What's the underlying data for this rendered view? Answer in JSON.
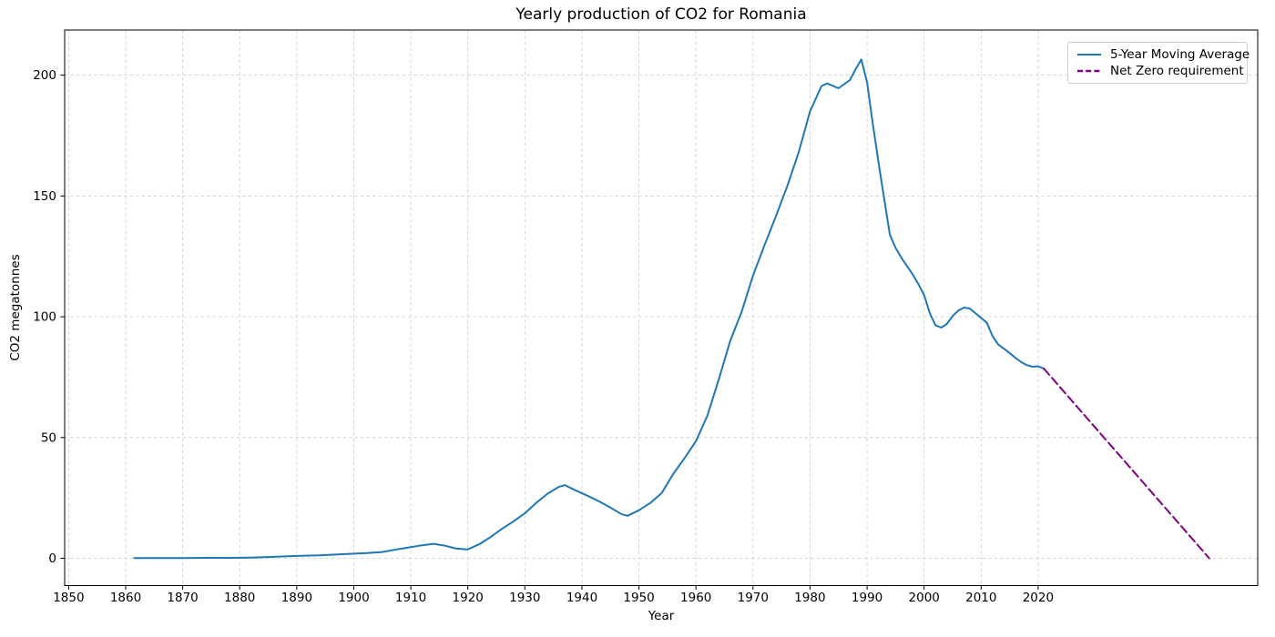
{
  "chart_data": {
    "type": "line",
    "title": "Yearly production of CO2 for Romania",
    "xlabel": "Year",
    "ylabel": "CO2 megatonnes",
    "xlim": [
      1849.3,
      2058.5
    ],
    "ylim": [
      -11.3,
      218.7
    ],
    "xticks": [
      1850,
      1860,
      1870,
      1880,
      1890,
      1900,
      1910,
      1920,
      1930,
      1940,
      1950,
      1960,
      1970,
      1980,
      1990,
      2000,
      2010,
      2020
    ],
    "yticks": [
      0,
      50,
      100,
      150,
      200
    ],
    "grid": true,
    "grid_style": "dashed",
    "legend_position": "upper right",
    "series": [
      {
        "name": "5-Year Moving Average",
        "color": "#1f77b4",
        "style": "solid",
        "points": [
          [
            1861.5,
            0.1
          ],
          [
            1866,
            0.1
          ],
          [
            1870,
            0.1
          ],
          [
            1874,
            0.2
          ],
          [
            1878,
            0.2
          ],
          [
            1882,
            0.3
          ],
          [
            1886,
            0.6
          ],
          [
            1890,
            1.0
          ],
          [
            1894,
            1.2
          ],
          [
            1898,
            1.7
          ],
          [
            1902,
            2.1
          ],
          [
            1905,
            2.6
          ],
          [
            1908,
            3.9
          ],
          [
            1910,
            4.6
          ],
          [
            1912,
            5.4
          ],
          [
            1914,
            6.0
          ],
          [
            1916,
            5.2
          ],
          [
            1918,
            4.0
          ],
          [
            1920,
            3.7
          ],
          [
            1922,
            5.8
          ],
          [
            1924,
            8.8
          ],
          [
            1926,
            12.2
          ],
          [
            1928,
            15.3
          ],
          [
            1930,
            18.6
          ],
          [
            1932,
            23.0
          ],
          [
            1934,
            26.8
          ],
          [
            1936,
            29.6
          ],
          [
            1937,
            30.3
          ],
          [
            1939,
            28.0
          ],
          [
            1941,
            25.9
          ],
          [
            1943,
            23.6
          ],
          [
            1945,
            21.0
          ],
          [
            1947,
            18.2
          ],
          [
            1948,
            17.6
          ],
          [
            1950,
            19.9
          ],
          [
            1952,
            22.9
          ],
          [
            1954,
            27.0
          ],
          [
            1956,
            34.9
          ],
          [
            1958,
            41.5
          ],
          [
            1960,
            48.5
          ],
          [
            1962,
            59.0
          ],
          [
            1964,
            74.0
          ],
          [
            1966,
            90.0
          ],
          [
            1968,
            102.0
          ],
          [
            1970,
            117.0
          ],
          [
            1972,
            129.5
          ],
          [
            1974,
            141.5
          ],
          [
            1976,
            154.0
          ],
          [
            1978,
            168.0
          ],
          [
            1980,
            185.0
          ],
          [
            1982,
            195.5
          ],
          [
            1983,
            196.6
          ],
          [
            1985,
            194.6
          ],
          [
            1987,
            198.0
          ],
          [
            1988,
            202.5
          ],
          [
            1989,
            206.5
          ],
          [
            1990,
            197.0
          ],
          [
            1991,
            180.0
          ],
          [
            1992,
            164.0
          ],
          [
            1993,
            149.0
          ],
          [
            1994,
            134.0
          ],
          [
            1995,
            128.5
          ],
          [
            1996,
            124.5
          ],
          [
            1997,
            121.0
          ],
          [
            1998,
            117.5
          ],
          [
            1999,
            113.5
          ],
          [
            2000,
            109.0
          ],
          [
            2001,
            101.5
          ],
          [
            2002,
            96.5
          ],
          [
            2003,
            95.5
          ],
          [
            2004,
            97.0
          ],
          [
            2005,
            100.3
          ],
          [
            2006,
            102.5
          ],
          [
            2007,
            103.8
          ],
          [
            2008,
            103.4
          ],
          [
            2009,
            101.5
          ],
          [
            2010,
            99.5
          ],
          [
            2011,
            97.5
          ],
          [
            2012,
            92.0
          ],
          [
            2013,
            88.5
          ],
          [
            2014,
            86.8
          ],
          [
            2015,
            85.0
          ],
          [
            2016,
            83.0
          ],
          [
            2017,
            81.3
          ],
          [
            2018,
            80.0
          ],
          [
            2019,
            79.3
          ],
          [
            2020,
            79.5
          ],
          [
            2021,
            78.5
          ]
        ]
      },
      {
        "name": "Net Zero requirement",
        "color": "#800080",
        "style": "dashed",
        "points": [
          [
            2021,
            78.5
          ],
          [
            2050,
            0.0
          ]
        ]
      }
    ]
  }
}
